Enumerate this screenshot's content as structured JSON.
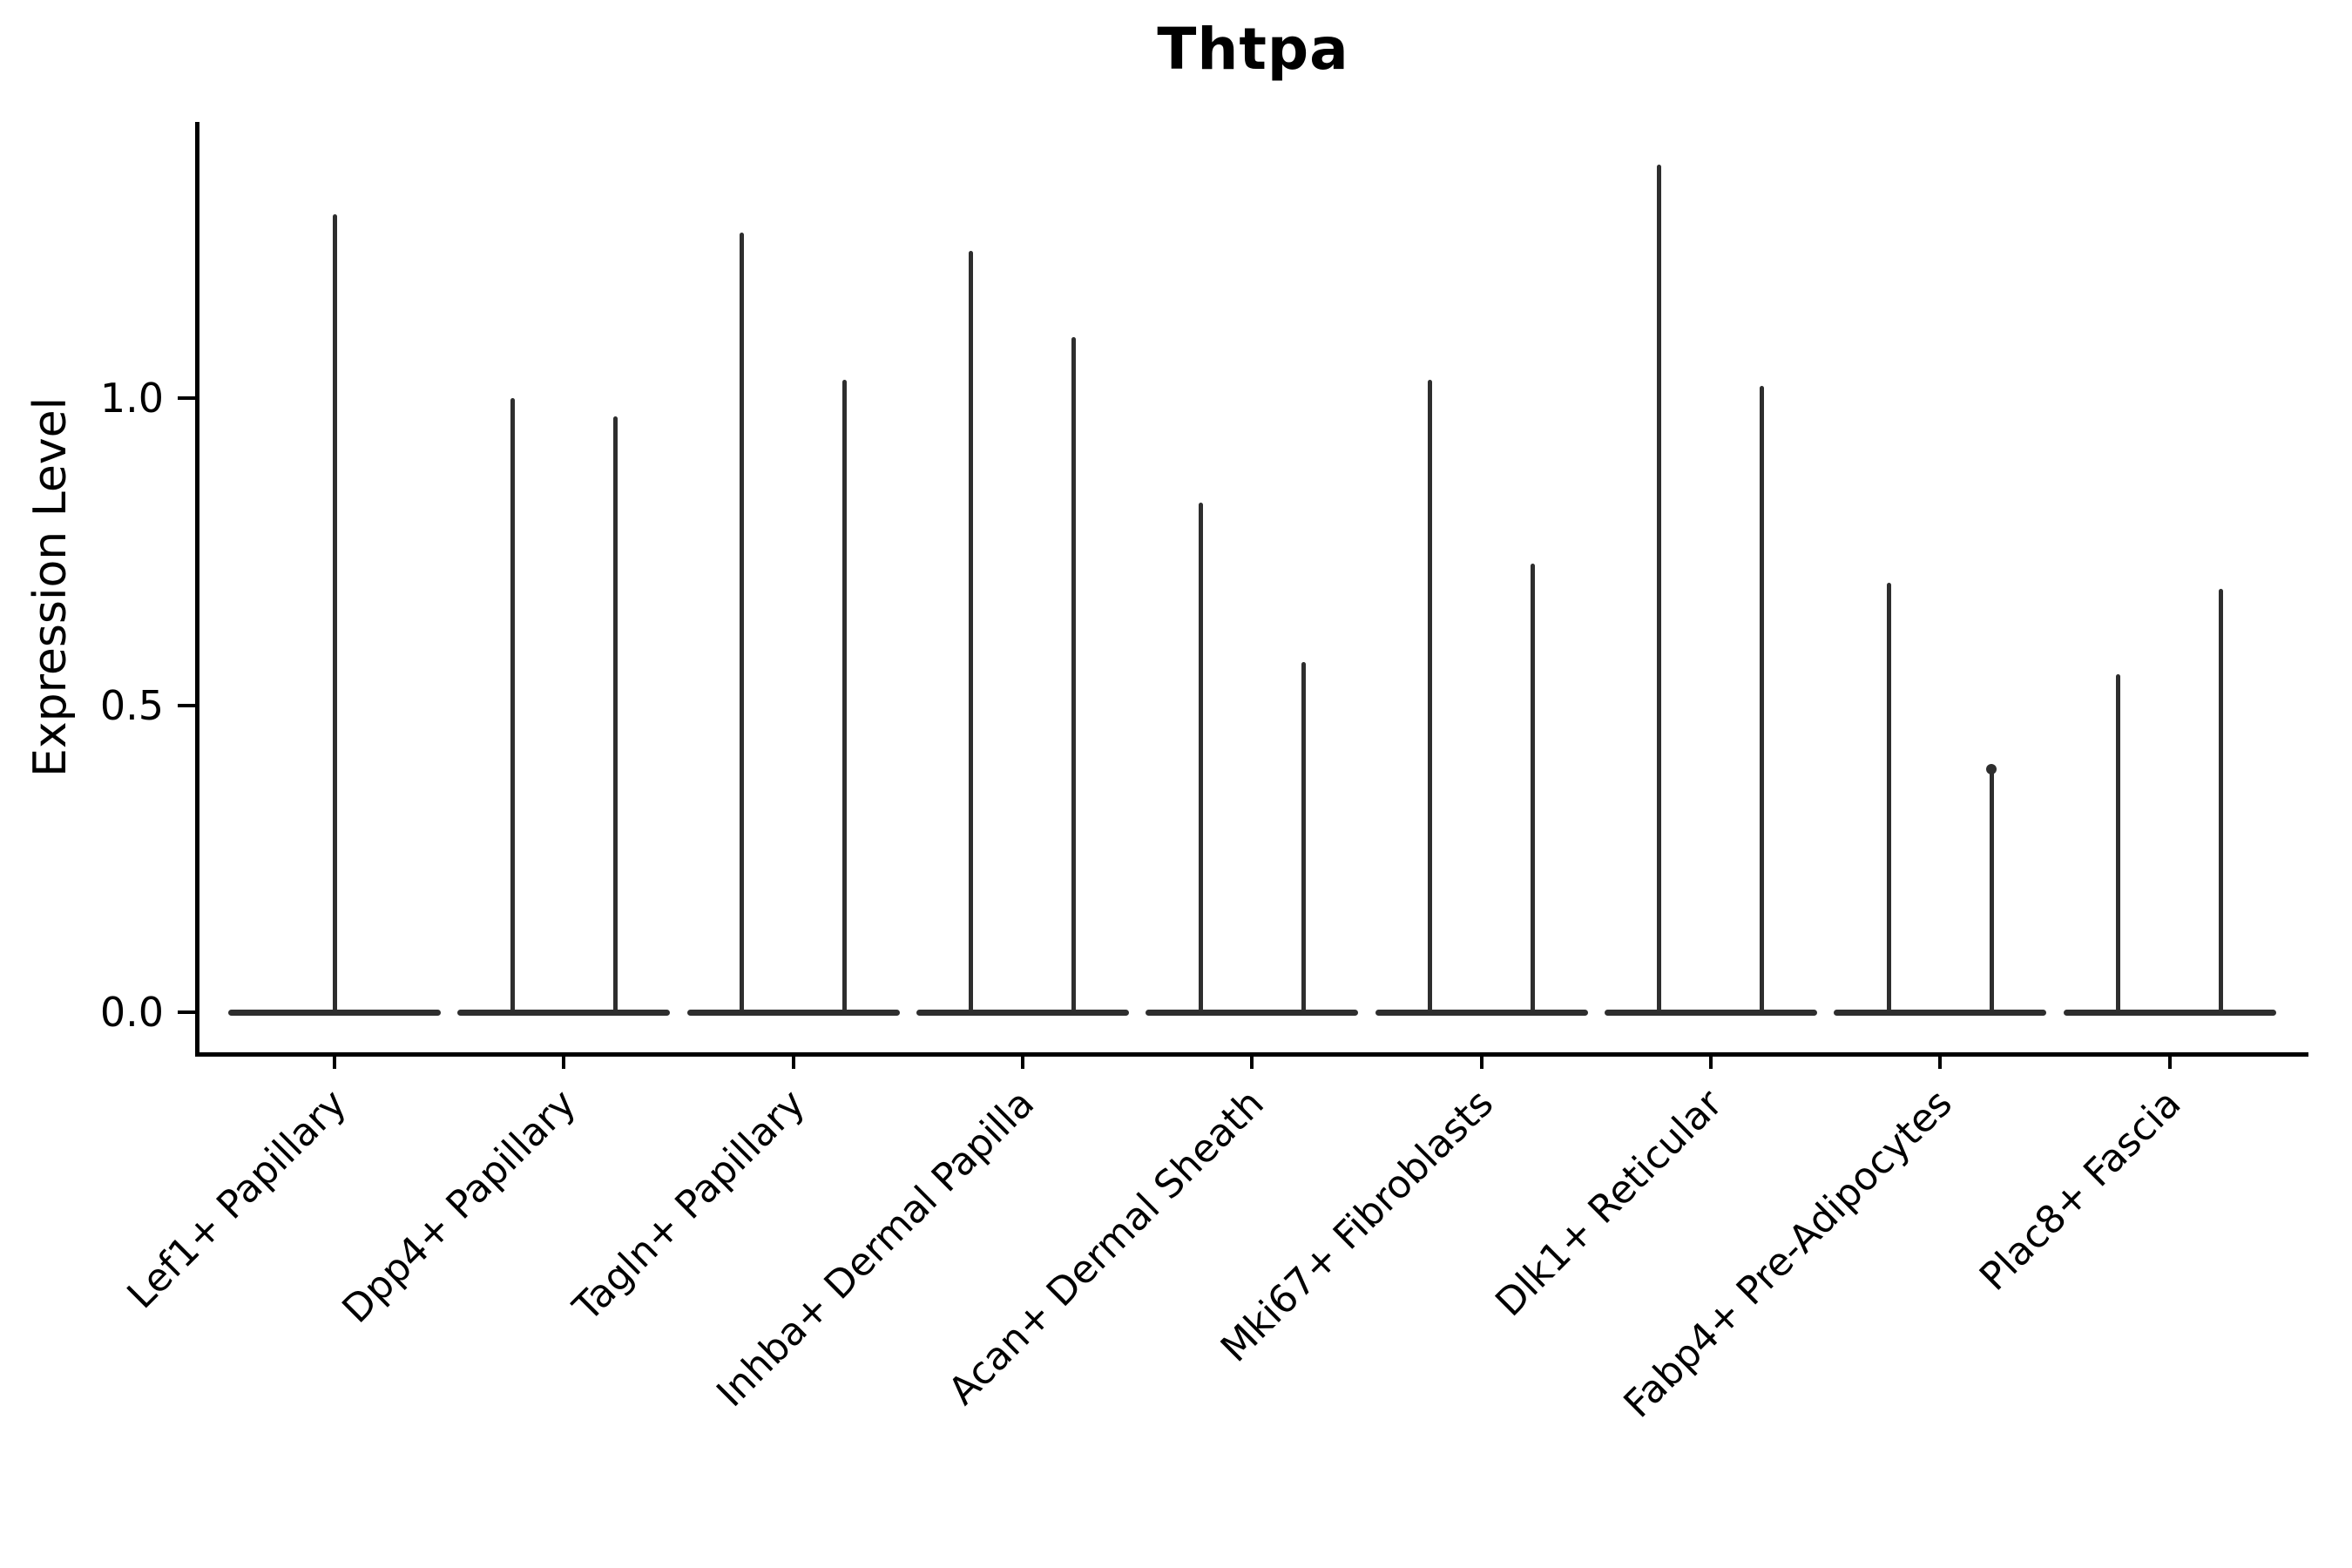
{
  "title": "Thtpa",
  "axes": {
    "ylabel": "Expression Level",
    "yticks": [
      {
        "label": "0.0",
        "value": 0.0
      },
      {
        "label": "0.5",
        "value": 0.5
      },
      {
        "label": "1.0",
        "value": 1.0
      }
    ]
  },
  "chart_data": {
    "type": "violin",
    "title": "Thtpa",
    "xlabel": "",
    "ylabel": "Expression Level",
    "ylim": [
      0,
      1.45
    ],
    "yticks": [
      0.0,
      0.5,
      1.0
    ],
    "grid": false,
    "legend": "none",
    "note": "Single-cell expression violins; density is concentrated at 0 (wide flat base) with a thin spike reaching the maximum expression value. First category shows one violin; all others show two side-by-side violins.",
    "categories": [
      "Lef1+ Papillary",
      "Dpp4+ Papillary",
      "Tagln+ Papillary",
      "Inhba+ Dermal Papilla",
      "Acan+ Dermal Sheath",
      "Mki67+ Fibroblasts",
      "Dlk1+ Reticular",
      "Fabp4+ Pre-Adipocytes",
      "Plac8+ Fascia"
    ],
    "violins": [
      {
        "category": "Lef1+ Papillary",
        "spikes": [
          {
            "max": 1.3
          }
        ]
      },
      {
        "category": "Dpp4+ Papillary",
        "spikes": [
          {
            "max": 1.0
          },
          {
            "max": 0.97
          }
        ]
      },
      {
        "category": "Tagln+ Papillary",
        "spikes": [
          {
            "max": 1.27
          },
          {
            "max": 1.03
          }
        ]
      },
      {
        "category": "Inhba+ Dermal Papilla",
        "spikes": [
          {
            "max": 1.24
          },
          {
            "max": 1.1
          }
        ]
      },
      {
        "category": "Acan+ Dermal Sheath",
        "spikes": [
          {
            "max": 0.83
          },
          {
            "max": 0.57
          }
        ]
      },
      {
        "category": "Mki67+ Fibroblasts",
        "spikes": [
          {
            "max": 1.03
          },
          {
            "max": 0.73
          }
        ]
      },
      {
        "category": "Dlk1+ Reticular",
        "spikes": [
          {
            "max": 1.38
          },
          {
            "max": 1.02
          }
        ]
      },
      {
        "category": "Fabp4+ Pre-Adipocytes",
        "spikes": [
          {
            "max": 0.7
          },
          {
            "max": 0.4,
            "bulb": true
          }
        ]
      },
      {
        "category": "Plac8+ Fascia",
        "spikes": [
          {
            "max": 0.55
          },
          {
            "max": 0.69
          }
        ]
      }
    ]
  },
  "colors": {
    "violin": "#2e2e2e",
    "axis": "#000000",
    "text": "#000000",
    "background": "#ffffff"
  }
}
